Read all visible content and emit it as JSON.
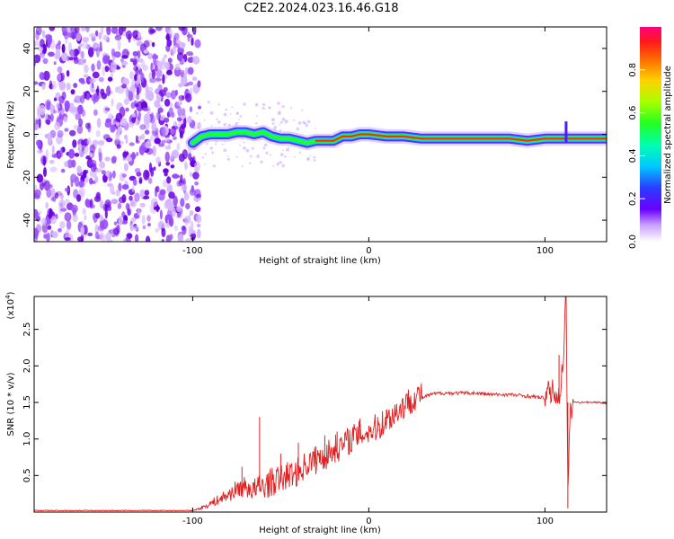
{
  "title": "C2E2.2024.023.16.46.G18",
  "colors": {
    "noise": "#7a00e6",
    "ridge_outer": "#4a1cff",
    "ridge_mid": "#00d4ff",
    "ridge_inner": "#22ff22",
    "ridge_core": "#ff2a00",
    "snr_line": "#e02020",
    "axis": "#000000"
  },
  "chart_data": [
    {
      "type": "heatmap",
      "xlabel": "Height of straight line (km)",
      "ylabel": "Frequency (Hz)",
      "xlim": [
        -190,
        135
      ],
      "ylim": [
        -50,
        50
      ],
      "x_ticks": [
        -100,
        0,
        100
      ],
      "x_tick_labels": [
        "-100",
        "0",
        "100"
      ],
      "y_ticks": [
        -40,
        -20,
        0,
        20,
        40
      ],
      "y_tick_labels": [
        "-40",
        "-20",
        "0",
        "20",
        "40"
      ],
      "noise_region": [
        -190,
        -100
      ],
      "ridge": {
        "x": [
          -100,
          -95,
          -90,
          -85,
          -80,
          -75,
          -70,
          -65,
          -60,
          -55,
          -50,
          -45,
          -40,
          -35,
          -30,
          -25,
          -20,
          -15,
          -10,
          -5,
          0,
          10,
          20,
          30,
          40,
          60,
          80,
          90,
          100,
          108,
          112,
          118,
          125,
          135
        ],
        "freq": [
          -4,
          -1,
          0,
          0,
          0,
          1,
          1,
          0,
          1,
          -1,
          -2,
          -2,
          -3,
          -4,
          -3,
          -3,
          -3,
          -1,
          -1,
          0,
          0,
          -1,
          -1,
          -2,
          -2,
          -2,
          -2,
          -3,
          -2,
          -2,
          -2,
          -2,
          -2,
          -2
        ]
      },
      "colorbar": {
        "label": "Normalized spectral amplitude",
        "range": [
          0,
          1
        ],
        "ticks": [
          0.0,
          0.2,
          0.4,
          0.6,
          0.8
        ],
        "tick_labels": [
          "0.0",
          "0.2",
          "0.4",
          "0.6",
          "0.8"
        ]
      }
    },
    {
      "type": "line",
      "xlabel": "Height of straight line (km)",
      "ylabel": "SNR (10 * v/v)",
      "scale_note": "(x10",
      "scale_exponent": "4",
      "scale_suffix": ")",
      "xlim": [
        -190,
        135
      ],
      "ylim": [
        0,
        2.95
      ],
      "x_ticks": [
        -100,
        0,
        100
      ],
      "x_tick_labels": [
        "-100",
        "0",
        "100"
      ],
      "y_ticks": [
        0.5,
        1.0,
        1.5,
        2.0,
        2.5
      ],
      "y_tick_labels": [
        "0.5",
        "1.0",
        "1.5",
        "2.0",
        "2.5"
      ],
      "series": [
        {
          "x": [
            -190,
            -150,
            -110,
            -100,
            -95,
            -90,
            -85,
            -80,
            -75,
            -70,
            -65,
            -60,
            -55,
            -50,
            -45,
            -40,
            -35,
            -30,
            -25,
            -20,
            -15,
            -10,
            -5,
            0,
            5,
            10,
            15,
            20,
            25,
            30,
            35,
            40,
            50,
            60,
            70,
            80,
            90,
            100,
            105,
            108,
            110,
            112,
            113,
            114,
            116,
            120,
            125,
            130,
            135
          ],
          "y": [
            0.02,
            0.02,
            0.02,
            0.02,
            0.05,
            0.1,
            0.15,
            0.2,
            0.28,
            0.3,
            0.25,
            0.3,
            0.35,
            0.4,
            0.45,
            0.5,
            0.6,
            0.65,
            0.7,
            0.8,
            0.85,
            0.95,
            1.0,
            1.05,
            1.1,
            1.2,
            1.3,
            1.4,
            1.5,
            1.55,
            1.6,
            1.62,
            1.62,
            1.62,
            1.6,
            1.6,
            1.58,
            1.55,
            1.6,
            1.5,
            1.9,
            2.95,
            0.05,
            1.2,
            1.5,
            1.5,
            1.5,
            1.5,
            1.48
          ]
        }
      ],
      "spikes": [
        {
          "x": -72,
          "y": 0.62
        },
        {
          "x": -62,
          "y": 1.3
        },
        {
          "x": -50,
          "y": 0.8
        },
        {
          "x": -40,
          "y": 0.95
        },
        {
          "x": -30,
          "y": 0.9
        },
        {
          "x": -25,
          "y": 1.05
        },
        {
          "x": -18,
          "y": 1.1
        },
        {
          "x": -5,
          "y": 1.28
        },
        {
          "x": 5,
          "y": 1.3
        },
        {
          "x": 10,
          "y": 1.4
        },
        {
          "x": 108,
          "y": 2.15
        },
        {
          "x": 112,
          "y": 2.95
        }
      ]
    }
  ]
}
